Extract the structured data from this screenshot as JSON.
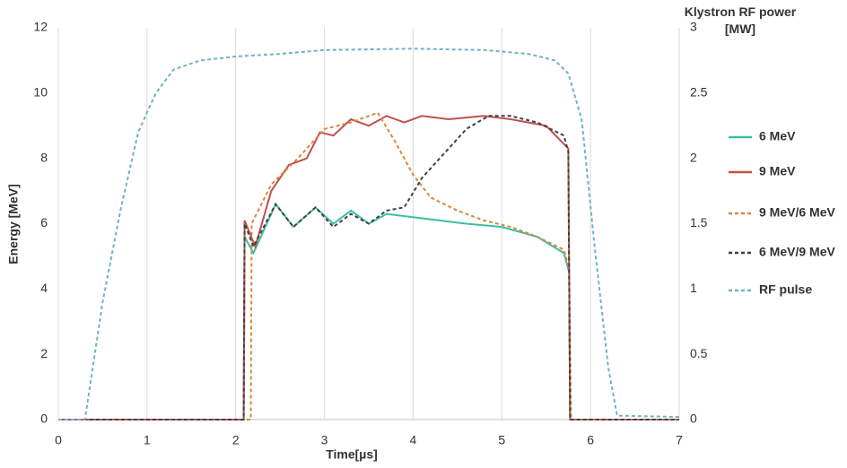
{
  "chart_data": {
    "type": "line",
    "x_label": "Time[µs]",
    "y_label": "Energy [MeV]",
    "y2_label": "Klystron RF power [MW]",
    "xlim": [
      0,
      7
    ],
    "xticks": [
      0,
      1,
      2,
      3,
      4,
      5,
      6,
      7
    ],
    "ylim": [
      0,
      12
    ],
    "yticks": [
      0,
      2,
      4,
      6,
      8,
      10,
      12
    ],
    "y2lim": [
      0,
      3
    ],
    "y2ticks": [
      0,
      0.5,
      1,
      1.5,
      2,
      2.5,
      3
    ],
    "grid": "x",
    "legend": "right",
    "series": [
      {
        "name": "6 MeV",
        "color": "#3cbfa0",
        "dashed": false,
        "x": [
          0,
          2.09,
          2.1,
          2.2,
          2.45,
          2.65,
          2.9,
          3.1,
          3.3,
          3.5,
          3.7,
          4.0,
          4.3,
          4.6,
          5.0,
          5.4,
          5.7,
          5.76,
          5.77,
          7
        ],
        "values": [
          0,
          0,
          5.6,
          5.1,
          6.6,
          5.9,
          6.5,
          6.0,
          6.4,
          6.0,
          6.3,
          6.2,
          6.1,
          6.0,
          5.9,
          5.6,
          5.1,
          4.5,
          0,
          0
        ]
      },
      {
        "name": "9 MeV",
        "color": "#c0504d",
        "dashed": false,
        "x": [
          0,
          2.09,
          2.1,
          2.22,
          2.4,
          2.6,
          2.8,
          2.95,
          3.1,
          3.3,
          3.5,
          3.7,
          3.9,
          4.1,
          4.4,
          4.8,
          5.1,
          5.5,
          5.75,
          5.77,
          7
        ],
        "values": [
          0,
          0,
          6.1,
          5.3,
          7.0,
          7.8,
          8.0,
          8.8,
          8.7,
          9.2,
          9.0,
          9.3,
          9.1,
          9.3,
          9.2,
          9.3,
          9.2,
          9.0,
          8.3,
          0,
          0
        ]
      },
      {
        "name": "9 MeV/6 MeV",
        "color": "#d4893f",
        "dashed": true,
        "x": [
          0,
          2.17,
          2.18,
          2.4,
          2.7,
          3.0,
          3.3,
          3.6,
          3.8,
          4.0,
          4.2,
          4.5,
          4.8,
          5.1,
          5.4,
          5.7,
          5.76,
          5.78,
          7
        ],
        "values": [
          0,
          0,
          6.0,
          7.2,
          8.0,
          8.9,
          9.1,
          9.4,
          8.5,
          7.5,
          6.8,
          6.4,
          6.1,
          5.9,
          5.6,
          5.2,
          4.6,
          0,
          0
        ]
      },
      {
        "name": "6 MeV/9 MeV",
        "color": "#404040",
        "dashed": true,
        "x": [
          0,
          2.09,
          2.1,
          2.2,
          2.45,
          2.65,
          2.9,
          3.1,
          3.3,
          3.5,
          3.7,
          3.9,
          4.1,
          4.4,
          4.6,
          4.85,
          5.1,
          5.4,
          5.7,
          5.75,
          5.77,
          7
        ],
        "values": [
          0,
          0,
          6.0,
          5.3,
          6.6,
          5.9,
          6.5,
          5.9,
          6.3,
          6.0,
          6.4,
          6.5,
          7.4,
          8.3,
          8.9,
          9.3,
          9.3,
          9.1,
          8.7,
          8.2,
          0,
          0
        ]
      },
      {
        "name": "RF pulse",
        "color": "#6fb3c0",
        "dashed": true,
        "axis": "y2",
        "x": [
          0,
          0.3,
          0.5,
          0.7,
          0.9,
          1.1,
          1.3,
          1.6,
          2.0,
          2.5,
          3.0,
          4.0,
          4.8,
          5.3,
          5.6,
          5.75,
          5.9,
          6.05,
          6.2,
          6.3,
          7
        ],
        "values": [
          0,
          0,
          0.9,
          1.6,
          2.2,
          2.5,
          2.68,
          2.75,
          2.78,
          2.8,
          2.83,
          2.84,
          2.83,
          2.8,
          2.75,
          2.65,
          2.3,
          1.3,
          0.4,
          0.03,
          0.02
        ]
      }
    ]
  }
}
